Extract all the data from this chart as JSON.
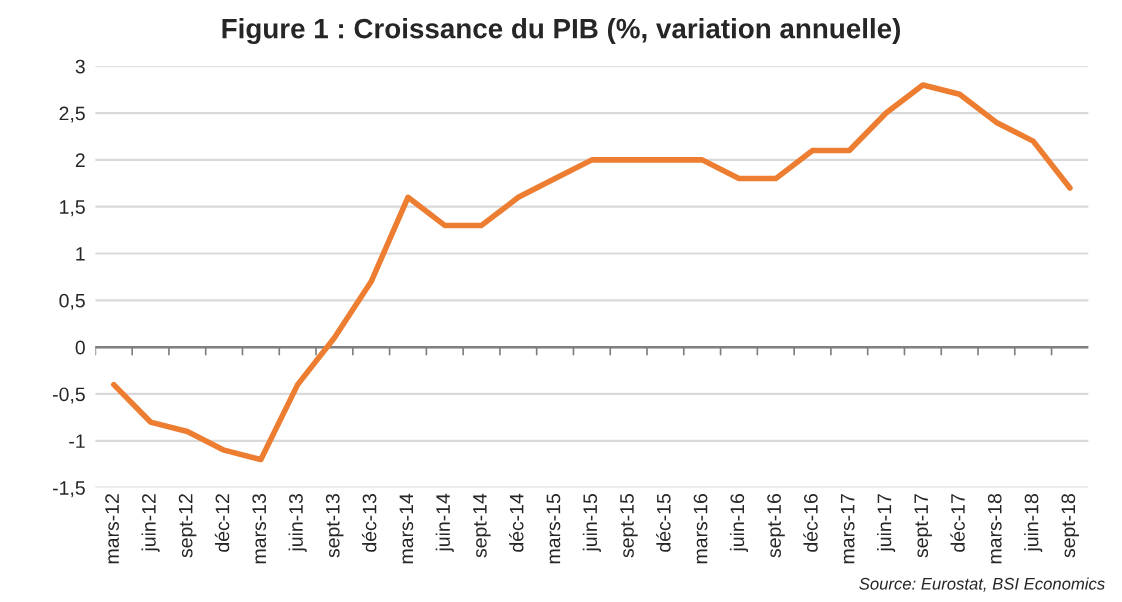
{
  "chart_data": {
    "type": "line",
    "title": "Figure 1 : Croissance du PIB (%, variation annuelle)",
    "categories": [
      "mars-12",
      "juin-12",
      "sept-12",
      "déc-12",
      "mars-13",
      "juin-13",
      "sept-13",
      "déc-13",
      "mars-14",
      "juin-14",
      "sept-14",
      "déc-14",
      "mars-15",
      "juin-15",
      "sept-15",
      "déc-15",
      "mars-16",
      "juin-16",
      "sept-16",
      "déc-16",
      "mars-17",
      "juin-17",
      "sept-17",
      "déc-17",
      "mars-18",
      "juin-18",
      "sept-18"
    ],
    "series": [
      {
        "color": "#ed7d31",
        "values": [
          -0.4,
          -0.8,
          -0.9,
          -1.1,
          -1.2,
          -0.4,
          0.1,
          0.7,
          1.6,
          1.3,
          1.3,
          1.6,
          1.8,
          2.0,
          2.0,
          2.0,
          2.0,
          1.8,
          1.8,
          2.1,
          2.1,
          2.5,
          2.8,
          2.7,
          2.4,
          2.2,
          1.7
        ]
      }
    ],
    "ylim": [
      -1.5,
      3
    ],
    "yticks": [
      {
        "value": -1.5,
        "label": "-1,5"
      },
      {
        "value": -1,
        "label": "-1"
      },
      {
        "value": -0.5,
        "label": "-0,5"
      },
      0,
      {
        "value": 0.5,
        "label": "0,5"
      },
      1,
      {
        "value": 1.5,
        "label": "1,5"
      },
      2,
      {
        "value": 2.5,
        "label": "2,5"
      },
      3
    ],
    "ref_lines": [
      {
        "axis": "y",
        "value": 0,
        "color": "#7f7f7f"
      }
    ],
    "grid": "y",
    "legend": false,
    "marker": "none",
    "line_style": "solid",
    "annotations": [
      "Source: Eurostat, BSI Economics"
    ]
  }
}
